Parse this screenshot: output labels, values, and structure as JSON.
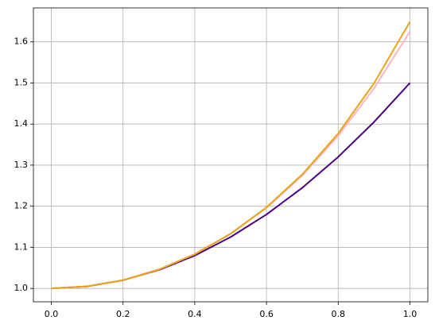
{
  "chart_data": {
    "type": "line",
    "x": [
      0,
      0.1,
      0.2,
      0.3,
      0.4,
      0.5,
      0.6,
      0.7,
      0.8,
      0.9,
      1.0
    ],
    "series": [
      {
        "color": "#4b0082",
        "values": [
          1.0,
          1.005,
          1.02,
          1.045,
          1.08,
          1.125,
          1.18,
          1.245,
          1.32,
          1.405,
          1.5
        ]
      },
      {
        "color": "#ffb6c1",
        "values": [
          1.0,
          1.005,
          1.0202,
          1.046,
          1.0832,
          1.1328,
          1.1962,
          1.275,
          1.3712,
          1.487,
          1.625
        ]
      },
      {
        "color": "#e8a317",
        "values": [
          1.0,
          1.005,
          1.0202,
          1.046,
          1.0833,
          1.1331,
          1.1972,
          1.2776,
          1.3771,
          1.4993,
          1.6487
        ]
      }
    ],
    "xlim": [
      -0.05,
      1.05
    ],
    "ylim": [
      0.9675,
      1.6825
    ],
    "xticks": [
      {
        "value": 0,
        "label": "0.0"
      },
      0.2,
      0.4,
      0.6,
      0.8,
      {
        "value": 1,
        "label": "1.0"
      }
    ],
    "yticks": [
      {
        "value": 1,
        "label": "1.0"
      },
      1.1,
      1.2,
      1.3,
      1.4,
      1.5,
      1.6
    ],
    "grid": true
  }
}
